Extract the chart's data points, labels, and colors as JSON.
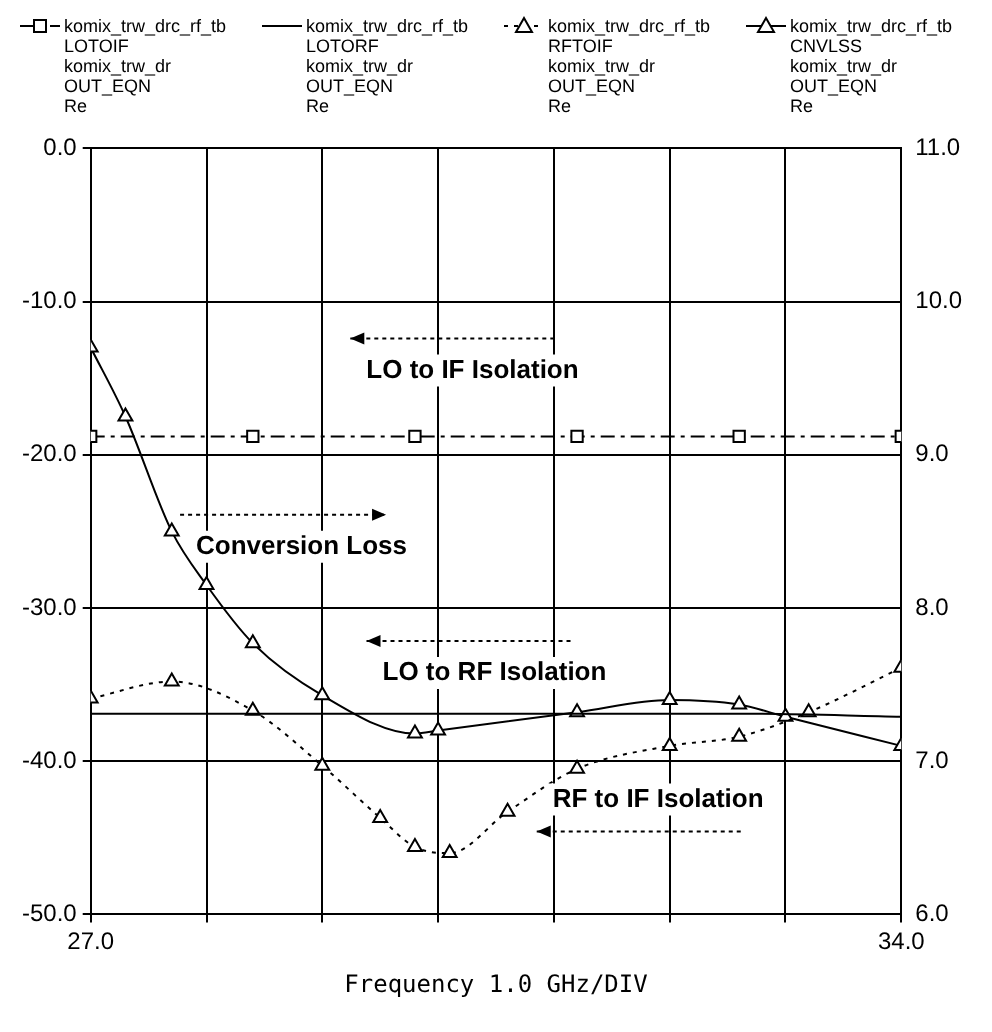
{
  "chart_data": {
    "type": "line",
    "xlabel": "Frequency 1.0 GHz/DIV",
    "legend": "top",
    "grid": true,
    "xlim": [
      27,
      34
    ],
    "xticks": [
      {
        "value": 27,
        "label": "27.0"
      },
      {
        "value": 28,
        "label": null
      },
      {
        "value": 29,
        "label": null
      },
      {
        "value": 30,
        "label": null
      },
      {
        "value": 31,
        "label": null
      },
      {
        "value": 32,
        "label": null
      },
      {
        "value": 33,
        "label": null
      },
      {
        "value": 34,
        "label": "34.0"
      }
    ],
    "ylim": [
      -50,
      0
    ],
    "yticks": [
      {
        "value": -50,
        "label": "-50.0"
      },
      {
        "value": -40,
        "label": "-40.0"
      },
      {
        "value": -30,
        "label": "-30.0"
      },
      {
        "value": -20,
        "label": "-20.0"
      },
      {
        "value": -10,
        "label": "-10.0"
      },
      {
        "value": 0,
        "label": "0.0"
      }
    ],
    "y2lim": [
      6,
      11
    ],
    "y2ticks": [
      {
        "value": 6,
        "label": "6.0"
      },
      {
        "value": 7,
        "label": "7.0"
      },
      {
        "value": 8,
        "label": "8.0"
      },
      {
        "value": 9,
        "label": "9.0"
      },
      {
        "value": 10,
        "label": "10.0"
      },
      {
        "value": 11,
        "label": "11.0"
      }
    ],
    "series": [
      {
        "name": "komix_trw_drc_rf_tb\nLOTOIF\nkomix_trw_dr\nOUT_EQN\nRe",
        "color": "#000000",
        "marker": "square",
        "line_style": "dashed",
        "x": [
          27,
          28.4,
          29.8,
          31.2,
          32.6,
          34
        ],
        "values": [
          -18.8,
          -18.8,
          -18.8,
          -18.8,
          -18.8,
          -18.8
        ]
      },
      {
        "name": "komix_trw_drc_rf_tb\nLOTORF\nkomix_trw_dr\nOUT_EQN\nRe",
        "color": "#000000",
        "marker": "none",
        "line_style": "solid",
        "x": [
          27,
          28.4,
          29.8,
          31.2,
          32.6,
          34
        ],
        "values": [
          -36.9,
          -36.9,
          -36.9,
          -36.9,
          -36.9,
          -37.1
        ]
      },
      {
        "name": "komix_trw_drc_rf_tb\nRFTOIF\nkomix_trw_dr\nOUT_EQN\nRe",
        "color": "#000000",
        "marker": "triangle",
        "line_style": "dotted",
        "x": [
          27,
          27.7,
          28.4,
          29,
          29.5,
          29.8,
          30.1,
          30.6,
          31.2,
          32,
          32.6,
          33.2,
          34
        ],
        "values": [
          -35.9,
          -34.8,
          -36.7,
          -40.3,
          -43.7,
          -45.6,
          -46,
          -43.3,
          -40.5,
          -39,
          -38.4,
          -36.8,
          -33.9
        ]
      },
      {
        "name": "komix_trw_drc_rf_tb\nCNVLSS\nkomix_trw_dr\nOUT_EQN\nRe",
        "color": "#000000",
        "marker": "triangle",
        "line_style": "solid",
        "axis": "y2",
        "x": [
          27,
          27.3,
          27.7,
          28,
          28.4,
          29,
          29.8,
          30,
          31.2,
          32,
          32.6,
          33,
          34
        ],
        "values": [
          9.7,
          9.25,
          8.5,
          8.15,
          7.77,
          7.43,
          7.18,
          7.2,
          7.32,
          7.4,
          7.37,
          7.29,
          7.1
        ]
      }
    ],
    "annotations": [
      "LO to IF Isolation",
      "Conversion Loss",
      "LO to RF Isolation",
      "RF to IF Isolation"
    ]
  }
}
